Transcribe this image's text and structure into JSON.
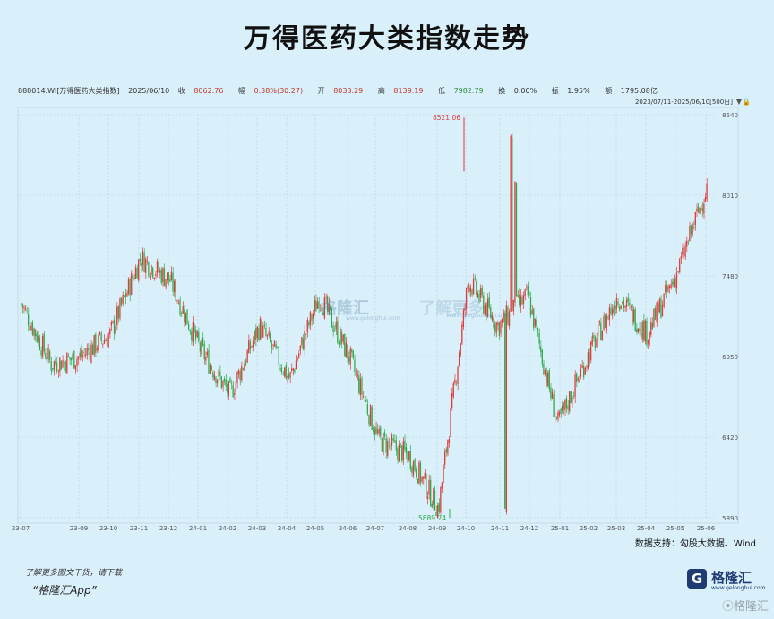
{
  "title": "万得医药大类指数走势",
  "info": {
    "code": "888014.WI[万得医药大类指数]",
    "date": "2025/06/10",
    "close_label": "收",
    "close": "8062.76",
    "change_label": "幅",
    "change": "0.38%(30.27)",
    "open_label": "开",
    "open": "8033.29",
    "high_label": "高",
    "high": "8139.19",
    "low_label": "低",
    "low": "7982.79",
    "turnover_label": "换",
    "turnover": "0.00%",
    "amplitude_label": "振",
    "amplitude": "1.95%",
    "amount_label": "额",
    "amount": "1795.08亿"
  },
  "range_tag": "2023/07/11-2025/06/10[500日]",
  "source": "数据支持：勾股大数据、Wind",
  "footer": {
    "note": "了解更多图文干货，请下载",
    "app": "“格隆汇App”",
    "logo_char": "G",
    "logo_text": "格隆汇",
    "logo_url": "www.gelonghui.com",
    "corner": "⦿格隆汇"
  },
  "watermark": {
    "text": "格隆汇",
    "url": "www.gelonghui.com",
    "text2": "了解更多",
    "url2": "www.gogudata.com"
  },
  "colors": {
    "up": "#e03a3a",
    "down": "#2faa4a",
    "background": "#d9f0fb",
    "grid": "#b8cfdc"
  },
  "chart_data": {
    "type": "candlestick",
    "y_ticks": [
      5890,
      6420,
      6950,
      7480,
      8010,
      8540
    ],
    "ylim": [
      5890,
      8540
    ],
    "x_ticks": [
      "23-07",
      "23-09",
      "23-10",
      "23-11",
      "23-12",
      "24-01",
      "24-02",
      "24-03",
      "24-04",
      "24-05",
      "24-06",
      "24-07",
      "24-08",
      "24-09",
      "24-10",
      "24-11",
      "24-12",
      "25-01",
      "25-02",
      "25-03",
      "25-04",
      "25-05",
      "25-06"
    ],
    "annotations": [
      {
        "label": "8521.06",
        "x": "24-10",
        "y": 8521.06,
        "kind": "max"
      },
      {
        "label": "5889.74",
        "x": "24-09",
        "y": 5889.74,
        "kind": "min"
      }
    ],
    "monthly_path": [
      {
        "month": "23-07",
        "close": 7300
      },
      {
        "month": "23-08",
        "close": 6900
      },
      {
        "month": "23-09",
        "close": 6950
      },
      {
        "month": "23-10",
        "close": 7100
      },
      {
        "month": "23-11",
        "close": 7600
      },
      {
        "month": "23-12",
        "close": 7450
      },
      {
        "month": "24-01",
        "close": 7000
      },
      {
        "month": "24-02",
        "close": 6700
      },
      {
        "month": "24-03",
        "close": 7150
      },
      {
        "month": "24-04",
        "close": 6800
      },
      {
        "month": "24-05",
        "close": 7350
      },
      {
        "month": "24-06",
        "close": 6950
      },
      {
        "month": "24-07",
        "close": 6400
      },
      {
        "month": "24-08",
        "close": 6300
      },
      {
        "month": "24-09",
        "close": 5950
      },
      {
        "month": "24-10",
        "close": 7450
      },
      {
        "month": "24-11",
        "close": 7150
      },
      {
        "month": "24-12",
        "close": 7350
      },
      {
        "month": "25-01",
        "close": 6500
      },
      {
        "month": "25-02",
        "close": 6950
      },
      {
        "month": "25-03",
        "close": 7350
      },
      {
        "month": "25-04",
        "close": 7100
      },
      {
        "month": "25-05",
        "close": 7500
      },
      {
        "month": "25-06",
        "close": 8062.76
      }
    ]
  }
}
